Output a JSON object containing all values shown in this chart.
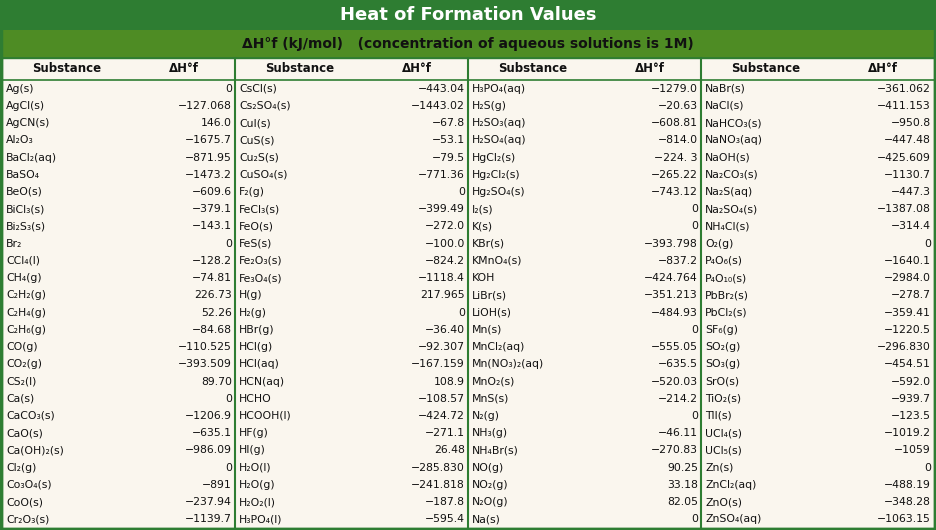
{
  "title": "Heat of Formation Values",
  "subtitle": "ΔH°f (kJ/mol)   (concentration of aqueous solutions is 1Μ)",
  "title_bg": "#2e7d32",
  "title_text_color": "#ffffff",
  "subtitle_bg": "#558b2f",
  "subtitle_text_color": "#000000",
  "table_bg": "#faf6ee",
  "header_bg": "#faf6ee",
  "border_color": "#2e7d32",
  "col_header": [
    "Substance",
    "ΔH°f",
    "Substance",
    "ΔH°f",
    "Substance",
    "ΔH°f",
    "Substance",
    "ΔH°f"
  ],
  "col1": [
    [
      "Ag(s)",
      "0"
    ],
    [
      "AgCl(s)",
      "−127.068"
    ],
    [
      "AgCN(s)",
      "146.0"
    ],
    [
      "Al₂O₃",
      "−1675.7"
    ],
    [
      "BaCl₂(aq)",
      "−871.95"
    ],
    [
      "BaSO₄",
      "−1473.2"
    ],
    [
      "BeO(s)",
      "−609.6"
    ],
    [
      "BiCl₃(s)",
      "−379.1"
    ],
    [
      "Bi₂S₃(s)",
      "−143.1"
    ],
    [
      "Br₂",
      "0"
    ],
    [
      "CCl₄(l)",
      "−128.2"
    ],
    [
      "CH₄(g)",
      "−74.81"
    ],
    [
      "C₂H₂(g)",
      "226.73"
    ],
    [
      "C₂H₄(g)",
      "52.26"
    ],
    [
      "C₂H₆(g)",
      "−84.68"
    ],
    [
      "CO(g)",
      "−110.525"
    ],
    [
      "CO₂(g)",
      "−393.509"
    ],
    [
      "CS₂(l)",
      "89.70"
    ],
    [
      "Ca(s)",
      "0"
    ],
    [
      "CaCO₃(s)",
      "−1206.9"
    ],
    [
      "CaO(s)",
      "−635.1"
    ],
    [
      "Ca(OH)₂(s)",
      "−986.09"
    ],
    [
      "Cl₂(g)",
      "0"
    ],
    [
      "Co₃O₄(s)",
      "−891"
    ],
    [
      "CoO(s)",
      "−237.94"
    ],
    [
      "Cr₂O₃(s)",
      "−1139.7"
    ]
  ],
  "col2": [
    [
      "CsCl(s)",
      "−443.04"
    ],
    [
      "Cs₂SO₄(s)",
      "−1443.02"
    ],
    [
      "CuI(s)",
      "−67.8"
    ],
    [
      "CuS(s)",
      "−53.1"
    ],
    [
      "Cu₂S(s)",
      "−79.5"
    ],
    [
      "CuSO₄(s)",
      "−771.36"
    ],
    [
      "F₂(g)",
      "0"
    ],
    [
      "FeCl₃(s)",
      "−399.49"
    ],
    [
      "FeO(s)",
      "−272.0"
    ],
    [
      "FeS(s)",
      "−100.0"
    ],
    [
      "Fe₂O₃(s)",
      "−824.2"
    ],
    [
      "Fe₃O₄(s)",
      "−1118.4"
    ],
    [
      "H(g)",
      "217.965"
    ],
    [
      "H₂(g)",
      "0"
    ],
    [
      "HBr(g)",
      "−36.40"
    ],
    [
      "HCl(g)",
      "−92.307"
    ],
    [
      "HCl(aq)",
      "−167.159"
    ],
    [
      "HCN(aq)",
      "108.9"
    ],
    [
      "HCHO",
      "−108.57"
    ],
    [
      "HCOOH(l)",
      "−424.72"
    ],
    [
      "HF(g)",
      "−271.1"
    ],
    [
      "HI(g)",
      "26.48"
    ],
    [
      "H₂O(l)",
      "−285.830"
    ],
    [
      "H₂O(g)",
      "−241.818"
    ],
    [
      "H₂O₂(l)",
      "−187.8"
    ],
    [
      "H₃PO₄(l)",
      "−595.4"
    ]
  ],
  "col3": [
    [
      "H₃PO₄(aq)",
      "−1279.0"
    ],
    [
      "H₂S(g)",
      "−20.63"
    ],
    [
      "H₂SO₃(aq)",
      "−608.81"
    ],
    [
      "H₂SO₄(aq)",
      "−814.0"
    ],
    [
      "HgCl₂(s)",
      "−224. 3"
    ],
    [
      "Hg₂Cl₂(s)",
      "−265.22"
    ],
    [
      "Hg₂SO₄(s)",
      "−743.12"
    ],
    [
      "I₂(s)",
      "0"
    ],
    [
      "K(s)",
      "0"
    ],
    [
      "KBr(s)",
      "−393.798"
    ],
    [
      "KMnO₄(s)",
      "−837.2"
    ],
    [
      "KOH",
      "−424.764"
    ],
    [
      "LiBr(s)",
      "−351.213"
    ],
    [
      "LiOH(s)",
      "−484.93"
    ],
    [
      "Mn(s)",
      "0"
    ],
    [
      "MnCl₂(aq)",
      "−555.05"
    ],
    [
      "Mn(NO₃)₂(aq)",
      "−635.5"
    ],
    [
      "MnO₂(s)",
      "−520.03"
    ],
    [
      "MnS(s)",
      "−214.2"
    ],
    [
      "N₂(g)",
      "0"
    ],
    [
      "NH₃(g)",
      "−46.11"
    ],
    [
      "NH₄Br(s)",
      "−270.83"
    ],
    [
      "NO(g)",
      "90.25"
    ],
    [
      "NO₂(g)",
      "33.18"
    ],
    [
      "N₂O(g)",
      "82.05"
    ],
    [
      "Na(s)",
      "0"
    ]
  ],
  "col4": [
    [
      "NaBr(s)",
      "−361.062"
    ],
    [
      "NaCl(s)",
      "−411.153"
    ],
    [
      "NaHCO₃(s)",
      "−950.8"
    ],
    [
      "NaNO₃(aq)",
      "−447.48"
    ],
    [
      "NaOH(s)",
      "−425.609"
    ],
    [
      "Na₂CO₃(s)",
      "−1130.7"
    ],
    [
      "Na₂S(aq)",
      "−447.3"
    ],
    [
      "Na₂SO₄(s)",
      "−1387.08"
    ],
    [
      "NH₄Cl(s)",
      "−314.4"
    ],
    [
      "O₂(g)",
      "0"
    ],
    [
      "P₄O₆(s)",
      "−1640.1"
    ],
    [
      "P₄O₁₀(s)",
      "−2984.0"
    ],
    [
      "PbBr₂(s)",
      "−278.7"
    ],
    [
      "PbCl₂(s)",
      "−359.41"
    ],
    [
      "SF₆(g)",
      "−1220.5"
    ],
    [
      "SO₂(g)",
      "−296.830"
    ],
    [
      "SO₃(g)",
      "−454.51"
    ],
    [
      "SrO(s)",
      "−592.0"
    ],
    [
      "TiO₂(s)",
      "−939.7"
    ],
    [
      "TlI(s)",
      "−123.5"
    ],
    [
      "UCl₄(s)",
      "−1019.2"
    ],
    [
      "UCl₅(s)",
      "−1059"
    ],
    [
      "Zn(s)",
      "0"
    ],
    [
      "ZnCl₂(aq)",
      "−488.19"
    ],
    [
      "ZnO(s)",
      "−348.28"
    ],
    [
      "ZnSO₄(aq)",
      "−1063.15"
    ]
  ]
}
